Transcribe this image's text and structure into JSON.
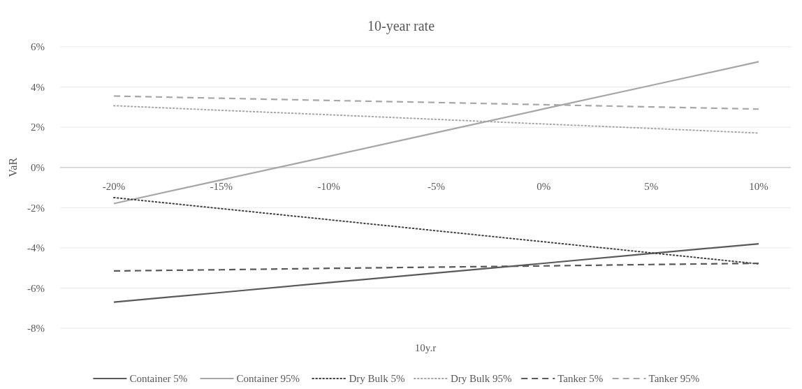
{
  "chart_data": {
    "type": "line",
    "title": "10-year rate",
    "xlabel": "10y.r",
    "ylabel": "VaR",
    "categories": [
      "-20%",
      "-15%",
      "-10%",
      "-5%",
      "0%",
      "5%",
      "10%"
    ],
    "series": [
      {
        "name": "Container 5%",
        "color": "#595959",
        "line_style": "solid",
        "values": [
          -6.7,
          -6.22,
          -5.73,
          -5.25,
          -4.77,
          -4.28,
          -3.8
        ]
      },
      {
        "name": "Container 95%",
        "color": "#a6a6a6",
        "line_style": "solid",
        "values": [
          -1.8,
          -0.62,
          0.55,
          1.73,
          2.91,
          4.08,
          5.26
        ]
      },
      {
        "name": "Dry Bulk 5%",
        "color": "#404040",
        "line_style": "dotted",
        "values": [
          -1.5,
          -2.05,
          -2.6,
          -3.15,
          -3.7,
          -4.25,
          -4.8
        ]
      },
      {
        "name": "Dry Bulk 95%",
        "color": "#a6a6a6",
        "line_style": "dotted",
        "values": [
          3.07,
          2.84,
          2.62,
          2.39,
          2.16,
          1.94,
          1.71
        ]
      },
      {
        "name": "Tanker 5%",
        "color": "#595959",
        "line_style": "dashed",
        "values": [
          -5.15,
          -5.09,
          -5.02,
          -4.96,
          -4.9,
          -4.83,
          -4.77
        ]
      },
      {
        "name": "Tanker 95%",
        "color": "#a6a6a6",
        "line_style": "dashed",
        "values": [
          3.55,
          3.44,
          3.33,
          3.23,
          3.12,
          3.01,
          2.9
        ]
      }
    ],
    "ylim": [
      -8,
      6
    ],
    "yticks": [
      {
        "value": -8,
        "label": "-8%"
      },
      {
        "value": -6,
        "label": "-6%"
      },
      {
        "value": -4,
        "label": "-4%"
      },
      {
        "value": -2,
        "label": "-2%"
      },
      {
        "value": 0,
        "label": "0%"
      },
      {
        "value": 2,
        "label": "2%"
      },
      {
        "value": 4,
        "label": "4%"
      },
      {
        "value": 6,
        "label": "6%"
      }
    ],
    "grid": "y",
    "legend": "bottom",
    "marker": "none"
  }
}
